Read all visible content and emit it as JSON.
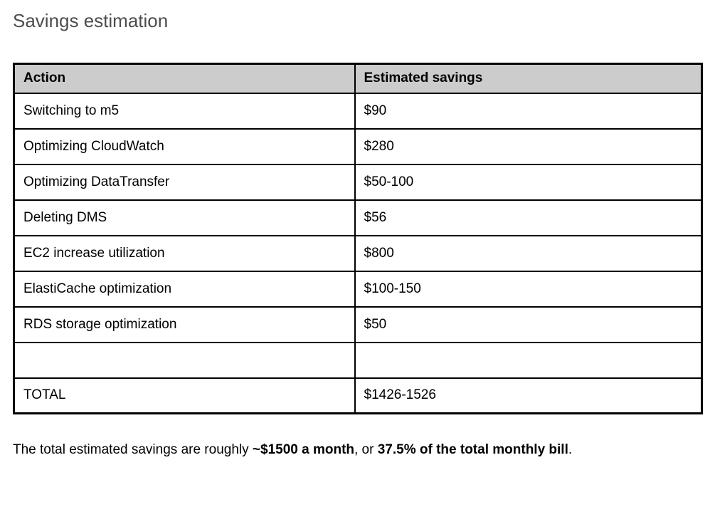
{
  "document": {
    "title": "Savings estimation"
  },
  "table": {
    "columns": [
      "Action",
      "Estimated savings"
    ],
    "rows": [
      {
        "action": "Switching to m5",
        "savings": "$90"
      },
      {
        "action": "Optimizing CloudWatch",
        "savings": "$280"
      },
      {
        "action": "Optimizing DataTransfer",
        "savings": "$50-100"
      },
      {
        "action": "Deleting DMS",
        "savings": "$56"
      },
      {
        "action": "EC2 increase utilization",
        "savings": "$800"
      },
      {
        "action": "ElastiCache optimization",
        "savings": "$100-150"
      },
      {
        "action": "RDS storage optimization",
        "savings": "$50"
      },
      {
        "action": "",
        "savings": ""
      },
      {
        "action": "TOTAL",
        "savings": "$1426-1526"
      }
    ]
  },
  "footer": {
    "segments": [
      {
        "text": "The total estimated savings are roughly ",
        "bold": false
      },
      {
        "text": "~$1500 a month",
        "bold": true
      },
      {
        "text": ", or ",
        "bold": false
      },
      {
        "text": "37.5% of the total monthly bill",
        "bold": true
      },
      {
        "text": ".",
        "bold": false
      }
    ]
  },
  "colors": {
    "header_background": "#cccccc",
    "border": "#000000",
    "title_text": "#4d4d4d",
    "body_text": "#000000",
    "page_background": "#ffffff"
  }
}
